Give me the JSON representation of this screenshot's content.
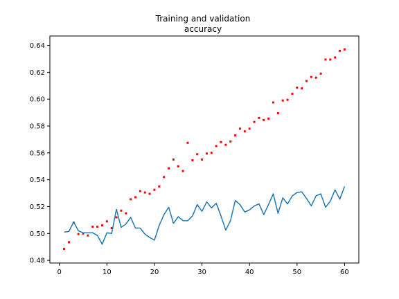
{
  "chart_data": {
    "type": "line",
    "title_lines": [
      "Training and validation",
      "accuracy"
    ],
    "xlabel": "",
    "ylabel": "",
    "xlim": [
      -2,
      63
    ],
    "ylim": [
      0.478,
      0.647
    ],
    "x_ticks": [
      0,
      10,
      20,
      30,
      40,
      50,
      60
    ],
    "y_ticks": [
      0.48,
      0.5,
      0.52,
      0.54,
      0.56,
      0.58,
      0.6,
      0.62,
      0.64
    ],
    "y_tick_labels": [
      "0.48",
      "0.50",
      "0.52",
      "0.54",
      "0.56",
      "0.58",
      "0.60",
      "0.62",
      "0.64"
    ],
    "grid": false,
    "legend": "none",
    "x": [
      1,
      2,
      3,
      4,
      5,
      6,
      7,
      8,
      9,
      10,
      11,
      12,
      13,
      14,
      15,
      16,
      17,
      18,
      19,
      20,
      21,
      22,
      23,
      24,
      25,
      26,
      27,
      28,
      29,
      30,
      31,
      32,
      33,
      34,
      35,
      36,
      37,
      38,
      39,
      40,
      41,
      42,
      43,
      44,
      45,
      46,
      47,
      48,
      49,
      50,
      51,
      52,
      53,
      54,
      55,
      56,
      57,
      58,
      59,
      60
    ],
    "series": [
      {
        "style": "points",
        "color": "#ff0000",
        "values": [
          0.4885,
          0.4935,
          0.508,
          0.4995,
          0.5,
          0.4985,
          0.505,
          0.505,
          0.506,
          0.509,
          0.504,
          0.512,
          0.517,
          0.515,
          0.5255,
          0.527,
          0.5315,
          0.5305,
          0.5295,
          0.5325,
          0.535,
          0.542,
          0.5485,
          0.555,
          0.55,
          0.5465,
          0.5675,
          0.5545,
          0.559,
          0.555,
          0.5595,
          0.56,
          0.565,
          0.568,
          0.566,
          0.5685,
          0.573,
          0.578,
          0.576,
          0.578,
          0.583,
          0.586,
          0.5845,
          0.5855,
          0.5975,
          0.5895,
          0.599,
          0.5995,
          0.604,
          0.6085,
          0.608,
          0.6135,
          0.6165,
          0.616,
          0.619,
          0.6295,
          0.6295,
          0.631,
          0.636,
          0.637
        ]
      },
      {
        "style": "line",
        "color": "#1f77b4",
        "values": [
          0.501,
          0.5015,
          0.5085,
          0.502,
          0.5005,
          0.5005,
          0.5005,
          0.4985,
          0.492,
          0.5005,
          0.5,
          0.518,
          0.5045,
          0.507,
          0.512,
          0.504,
          0.504,
          0.4995,
          0.497,
          0.495,
          0.506,
          0.514,
          0.5195,
          0.5075,
          0.5125,
          0.5095,
          0.5095,
          0.513,
          0.5215,
          0.5165,
          0.5235,
          0.519,
          0.5225,
          0.513,
          0.5025,
          0.5095,
          0.5245,
          0.5215,
          0.516,
          0.5175,
          0.5205,
          0.522,
          0.514,
          0.5215,
          0.5295,
          0.515,
          0.5265,
          0.522,
          0.528,
          0.5305,
          0.531,
          0.526,
          0.5205,
          0.528,
          0.5295,
          0.5195,
          0.524,
          0.5325,
          0.5255,
          0.535
        ]
      }
    ]
  }
}
